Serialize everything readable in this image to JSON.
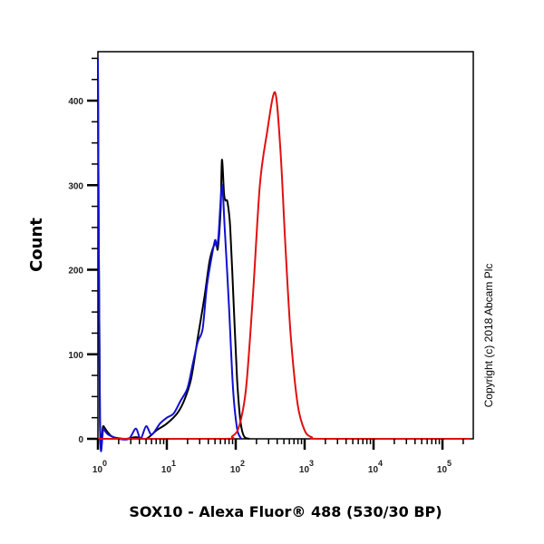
{
  "chart_data": {
    "type": "line",
    "subtype": "flow-cytometry-histogram-overlay",
    "title": "",
    "xlabel": "SOX10 - Alexa Fluor® 488 (530/30 BP)",
    "ylabel": "Count",
    "x_scale": "log",
    "x_ticks": [
      "10^0",
      "10^1",
      "10^2",
      "10^3",
      "10^4",
      "10^5"
    ],
    "x_tick_exponents": [
      0,
      1,
      2,
      3,
      4,
      5
    ],
    "y_ticks": [
      0,
      100,
      200,
      300,
      400
    ],
    "ylim": [
      0,
      458
    ],
    "xlim_log10": [
      0,
      5.4
    ],
    "grid": false,
    "legend": null,
    "annotation": "Copyright (c) 2018 Abcam Plc",
    "series": [
      {
        "name": "black",
        "color": "#000000",
        "points_log10x_y": [
          [
            0,
            440
          ],
          [
            0.03,
            20
          ],
          [
            0.08,
            15
          ],
          [
            0.2,
            3
          ],
          [
            0.4,
            0
          ],
          [
            0.55,
            2
          ],
          [
            0.7,
            0
          ],
          [
            0.85,
            10
          ],
          [
            1.0,
            18
          ],
          [
            1.15,
            30
          ],
          [
            1.25,
            45
          ],
          [
            1.35,
            70
          ],
          [
            1.45,
            120
          ],
          [
            1.55,
            170
          ],
          [
            1.62,
            210
          ],
          [
            1.68,
            228
          ],
          [
            1.72,
            232
          ],
          [
            1.74,
            225
          ],
          [
            1.78,
            270
          ],
          [
            1.8,
            330
          ],
          [
            1.83,
            290
          ],
          [
            1.85,
            282
          ],
          [
            1.88,
            280
          ],
          [
            1.92,
            250
          ],
          [
            1.97,
            160
          ],
          [
            2.02,
            70
          ],
          [
            2.07,
            20
          ],
          [
            2.12,
            3
          ],
          [
            2.2,
            0
          ]
        ]
      },
      {
        "name": "blue",
        "color": "#1010d0",
        "points_log10x_y": [
          [
            0,
            450
          ],
          [
            0.03,
            15
          ],
          [
            0.08,
            12
          ],
          [
            0.15,
            5
          ],
          [
            0.3,
            0
          ],
          [
            0.45,
            0
          ],
          [
            0.55,
            12
          ],
          [
            0.62,
            0
          ],
          [
            0.7,
            15
          ],
          [
            0.78,
            5
          ],
          [
            0.9,
            18
          ],
          [
            1.0,
            25
          ],
          [
            1.1,
            30
          ],
          [
            1.2,
            45
          ],
          [
            1.3,
            60
          ],
          [
            1.38,
            90
          ],
          [
            1.45,
            115
          ],
          [
            1.52,
            130
          ],
          [
            1.58,
            180
          ],
          [
            1.65,
            215
          ],
          [
            1.7,
            235
          ],
          [
            1.72,
            228
          ],
          [
            1.75,
            240
          ],
          [
            1.8,
            300
          ],
          [
            1.84,
            250
          ],
          [
            1.9,
            160
          ],
          [
            1.96,
            60
          ],
          [
            2.02,
            12
          ],
          [
            2.08,
            0
          ]
        ]
      },
      {
        "name": "red",
        "color": "#e01010",
        "points_log10x_y": [
          [
            0,
            0
          ],
          [
            1.8,
            0
          ],
          [
            1.95,
            3
          ],
          [
            2.05,
            15
          ],
          [
            2.15,
            60
          ],
          [
            2.25,
            170
          ],
          [
            2.35,
            300
          ],
          [
            2.45,
            360
          ],
          [
            2.57,
            410
          ],
          [
            2.65,
            340
          ],
          [
            2.72,
            230
          ],
          [
            2.8,
            120
          ],
          [
            2.9,
            40
          ],
          [
            3.0,
            10
          ],
          [
            3.1,
            2
          ],
          [
            3.3,
            0
          ],
          [
            5.4,
            0
          ]
        ]
      }
    ]
  }
}
